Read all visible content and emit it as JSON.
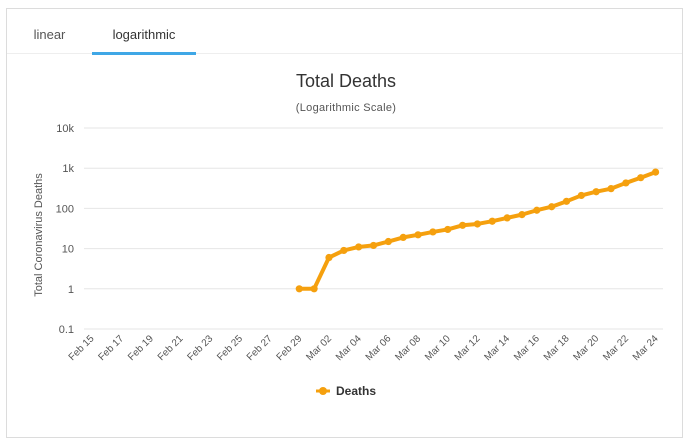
{
  "tabs": [
    {
      "label": "linear"
    },
    {
      "label": "logarithmic"
    }
  ],
  "colors": {
    "series": "#f5a00e",
    "grid": "#e6e6e6",
    "tab_underline": "#3fa7e6"
  },
  "chart_data": {
    "type": "line",
    "title": "Total Deaths",
    "subtitle": "(Logarithmic Scale)",
    "ylabel": "Total Coronavirus Deaths",
    "xlabel": "",
    "yscale": "log",
    "ylim": [
      0.1,
      10000
    ],
    "yticks": [
      {
        "value": 10000,
        "label": "10k"
      },
      {
        "value": 1000,
        "label": "1k"
      },
      {
        "value": 100,
        "label": "100"
      },
      {
        "value": 10,
        "label": "10"
      },
      {
        "value": 1,
        "label": "1"
      },
      {
        "value": 0.1,
        "label": "0.1"
      }
    ],
    "categories": [
      "Feb 15",
      "Feb 16",
      "Feb 17",
      "Feb 18",
      "Feb 19",
      "Feb 20",
      "Feb 21",
      "Feb 22",
      "Feb 23",
      "Feb 24",
      "Feb 25",
      "Feb 26",
      "Feb 27",
      "Feb 28",
      "Feb 29",
      "Mar 01",
      "Mar 02",
      "Mar 03",
      "Mar 04",
      "Mar 05",
      "Mar 06",
      "Mar 07",
      "Mar 08",
      "Mar 09",
      "Mar 10",
      "Mar 11",
      "Mar 12",
      "Mar 13",
      "Mar 14",
      "Mar 15",
      "Mar 16",
      "Mar 17",
      "Mar 18",
      "Mar 19",
      "Mar 20",
      "Mar 21",
      "Mar 22",
      "Mar 23",
      "Mar 24"
    ],
    "xtick_labels": [
      "Feb 15",
      "Feb 17",
      "Feb 19",
      "Feb 21",
      "Feb 23",
      "Feb 25",
      "Feb 27",
      "Feb 29",
      "Mar 02",
      "Mar 04",
      "Mar 06",
      "Mar 08",
      "Mar 10",
      "Mar 12",
      "Mar 14",
      "Mar 16",
      "Mar 18",
      "Mar 20",
      "Mar 22",
      "Mar 24"
    ],
    "legend": "bottom-center",
    "series": [
      {
        "name": "Deaths",
        "values": [
          null,
          null,
          null,
          null,
          null,
          null,
          null,
          null,
          null,
          null,
          null,
          null,
          null,
          null,
          1,
          1,
          6,
          9,
          11,
          12,
          15,
          19,
          22,
          26,
          30,
          38,
          41,
          48,
          58,
          70,
          90,
          110,
          150,
          210,
          260,
          310,
          430,
          580,
          800
        ]
      }
    ]
  }
}
